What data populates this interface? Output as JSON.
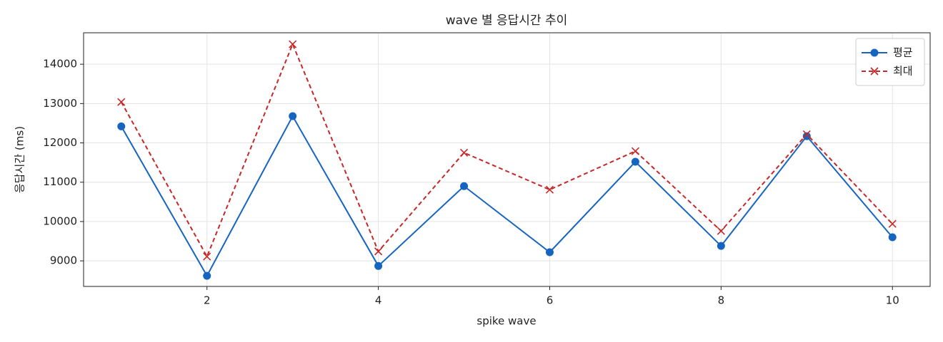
{
  "chart_data": {
    "type": "line",
    "title": "wave 별 응답시간 추이",
    "x_label": "spike wave",
    "y_label": "응답시간 (ms)",
    "x": [
      1,
      2,
      3,
      4,
      5,
      6,
      7,
      8,
      9,
      10
    ],
    "series": [
      {
        "name": "평균",
        "color": "#1565c0",
        "marker": "o",
        "dash": false,
        "values": [
          12420,
          8620,
          12680,
          8870,
          10900,
          9220,
          11520,
          9380,
          12170,
          9600
        ]
      },
      {
        "name": "최대",
        "color": "#c62828",
        "marker": "x",
        "dash": true,
        "values": [
          13040,
          9110,
          14510,
          9240,
          11750,
          10810,
          11790,
          9760,
          12220,
          9940
        ]
      }
    ],
    "xlim": [
      0.56,
      10.44
    ],
    "xticks": [
      2,
      4,
      6,
      8,
      10
    ],
    "ylim": [
      8350,
      14800
    ],
    "yticks": [
      9000,
      10000,
      11000,
      12000,
      13000,
      14000
    ],
    "grid": true,
    "legend": "upper right"
  }
}
